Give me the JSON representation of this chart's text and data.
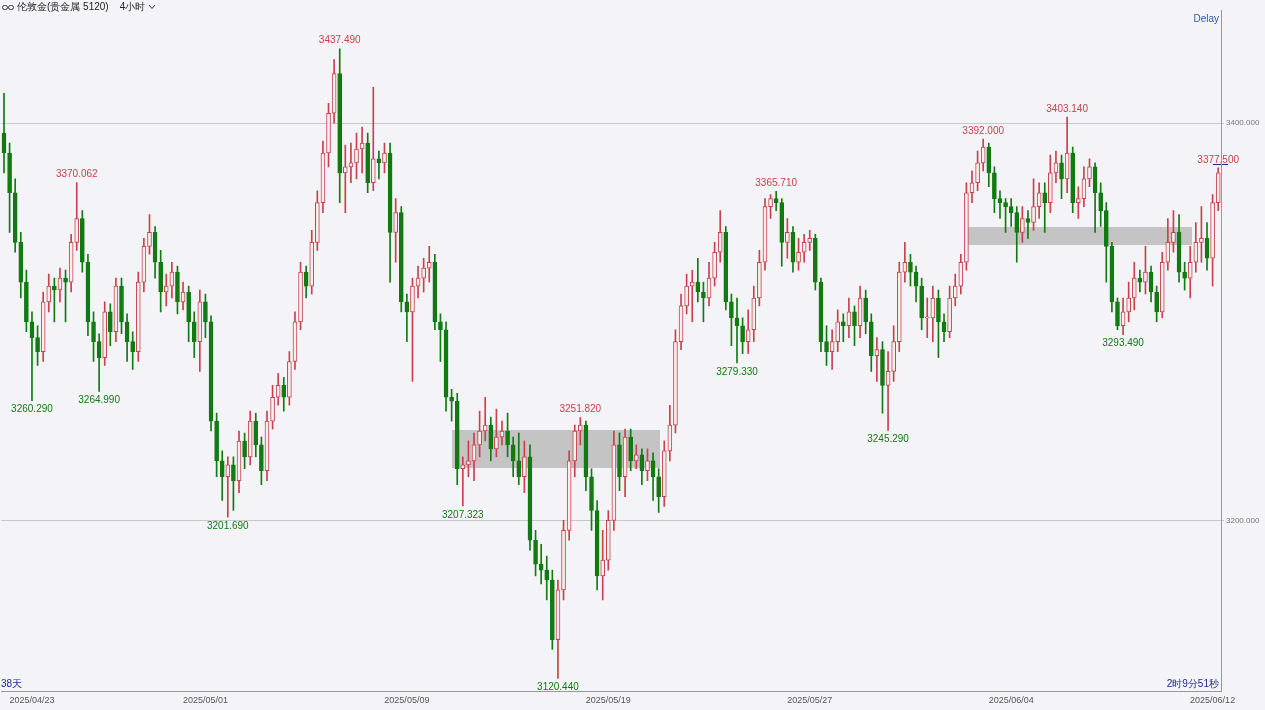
{
  "chart_data": {
    "type": "candlestick",
    "title": "伦敦金(贵金属 5120)",
    "subtitle": "4小时",
    "categories": [
      null,
      null,
      null,
      null,
      null,
      "2025/04/23",
      null,
      null,
      null,
      null,
      null,
      null,
      null,
      null,
      null,
      null,
      null,
      null,
      null,
      null,
      null,
      null,
      null,
      null,
      null,
      null,
      null,
      null,
      null,
      null,
      null,
      null,
      null,
      null,
      null,
      null,
      "2025/05/01",
      null,
      null,
      null,
      null,
      null,
      null,
      null,
      null,
      null,
      null,
      null,
      null,
      null,
      null,
      null,
      null,
      null,
      null,
      null,
      null,
      null,
      null,
      null,
      null,
      null,
      null,
      null,
      null,
      null,
      null,
      null,
      null,
      null,
      null,
      null,
      "2025/05/09",
      null,
      null,
      null,
      null,
      null,
      null,
      null,
      null,
      null,
      null,
      null,
      null,
      null,
      null,
      null,
      null,
      null,
      null,
      null,
      null,
      null,
      null,
      null,
      null,
      null,
      null,
      null,
      null,
      null,
      null,
      null,
      null,
      null,
      null,
      null,
      "2025/05/19",
      null,
      null,
      null,
      null,
      null,
      null,
      null,
      null,
      null,
      null,
      null,
      null,
      null,
      null,
      null,
      null,
      null,
      null,
      null,
      null,
      null,
      null,
      null,
      null,
      null,
      null,
      null,
      null,
      null,
      null,
      null,
      null,
      null,
      null,
      null,
      "2025/05/27",
      null,
      null,
      null,
      null,
      null,
      null,
      null,
      null,
      null,
      null,
      null,
      null,
      null,
      null,
      null,
      null,
      null,
      null,
      null,
      null,
      null,
      null,
      null,
      null,
      null,
      null,
      null,
      null,
      null,
      null,
      null,
      null,
      null,
      null,
      null,
      "2025/06/04",
      null,
      null,
      null,
      null,
      null,
      null,
      null,
      null,
      null,
      null,
      null,
      null,
      null,
      null,
      null,
      null,
      null,
      null,
      null,
      null,
      null,
      null,
      null,
      null,
      null,
      null,
      null,
      null,
      null,
      null,
      null,
      null,
      null,
      null,
      null,
      "2025/06/12",
      null
    ],
    "ohlc": [
      [
        3395,
        3415,
        3375,
        3385
      ],
      [
        3385,
        3390,
        3345,
        3365
      ],
      [
        3365,
        3372,
        3335,
        3340
      ],
      [
        3340,
        3345,
        3312,
        3320
      ],
      [
        3320,
        3326,
        3295,
        3300
      ],
      [
        3300,
        3305,
        3260.29,
        3292
      ],
      [
        3292,
        3298,
        3278,
        3285
      ],
      [
        3285,
        3315,
        3280,
        3310
      ],
      [
        3310,
        3324,
        3305,
        3318
      ],
      [
        3318,
        3322,
        3300,
        3316
      ],
      [
        3316,
        3327,
        3310,
        3322
      ],
      [
        3322,
        3326,
        3300,
        3320
      ],
      [
        3320,
        3344,
        3315,
        3340
      ],
      [
        3340,
        3370.062,
        3336,
        3352
      ],
      [
        3352,
        3356,
        3325,
        3330
      ],
      [
        3330,
        3334,
        3293,
        3300
      ],
      [
        3300,
        3305,
        3280,
        3290
      ],
      [
        3290,
        3294,
        3264.99,
        3282
      ],
      [
        3282,
        3310,
        3278,
        3305
      ],
      [
        3305,
        3309,
        3288,
        3295
      ],
      [
        3295,
        3322,
        3290,
        3318
      ],
      [
        3318,
        3322,
        3294,
        3300
      ],
      [
        3300,
        3304,
        3280,
        3290
      ],
      [
        3290,
        3295,
        3276,
        3285
      ],
      [
        3285,
        3325,
        3280,
        3320
      ],
      [
        3320,
        3342,
        3315,
        3338
      ],
      [
        3338,
        3354,
        3334,
        3345
      ],
      [
        3345,
        3348,
        3322,
        3330
      ],
      [
        3330,
        3336,
        3305,
        3315
      ],
      [
        3315,
        3324,
        3308,
        3318
      ],
      [
        3318,
        3330,
        3312,
        3325
      ],
      [
        3325,
        3328,
        3304,
        3310
      ],
      [
        3310,
        3320,
        3306,
        3315
      ],
      [
        3315,
        3318,
        3290,
        3300
      ],
      [
        3300,
        3305,
        3282,
        3290
      ],
      [
        3290,
        3316,
        3275,
        3310
      ],
      [
        3310,
        3314,
        3292,
        3300
      ],
      [
        3300,
        3303,
        3245,
        3250
      ],
      [
        3250,
        3254,
        3222,
        3230
      ],
      [
        3230,
        3235,
        3210,
        3222
      ],
      [
        3222,
        3232,
        3201.69,
        3228
      ],
      [
        3228,
        3232,
        3205,
        3220
      ],
      [
        3220,
        3245,
        3214,
        3240
      ],
      [
        3240,
        3244,
        3226,
        3232
      ],
      [
        3232,
        3255,
        3228,
        3250
      ],
      [
        3250,
        3254,
        3232,
        3238
      ],
      [
        3238,
        3242,
        3218,
        3225
      ],
      [
        3225,
        3255,
        3220,
        3250
      ],
      [
        3250,
        3268,
        3246,
        3262
      ],
      [
        3262,
        3274,
        3258,
        3268
      ],
      [
        3268,
        3272,
        3255,
        3262
      ],
      [
        3262,
        3285,
        3258,
        3280
      ],
      [
        3280,
        3305,
        3276,
        3300
      ],
      [
        3300,
        3330,
        3296,
        3325
      ],
      [
        3325,
        3328,
        3312,
        3318
      ],
      [
        3318,
        3346,
        3314,
        3340
      ],
      [
        3340,
        3366,
        3336,
        3360
      ],
      [
        3360,
        3391,
        3355,
        3385
      ],
      [
        3385,
        3410,
        3378,
        3405
      ],
      [
        3405,
        3432,
        3400,
        3425
      ],
      [
        3425,
        3437.49,
        3360,
        3375
      ],
      [
        3375,
        3389,
        3355,
        3378
      ],
      [
        3378,
        3390,
        3370,
        3380
      ],
      [
        3380,
        3395,
        3372,
        3387
      ],
      [
        3387,
        3398,
        3375,
        3390
      ],
      [
        3390,
        3395,
        3365,
        3370
      ],
      [
        3370,
        3418,
        3366,
        3382
      ],
      [
        3382,
        3386,
        3372,
        3380
      ],
      [
        3380,
        3390,
        3375,
        3385
      ],
      [
        3385,
        3390,
        3320,
        3345
      ],
      [
        3345,
        3362,
        3330,
        3355
      ],
      [
        3355,
        3358,
        3305,
        3310
      ],
      [
        3310,
        3314,
        3290,
        3305
      ],
      [
        3305,
        3322,
        3270,
        3318
      ],
      [
        3318,
        3328,
        3312,
        3322
      ],
      [
        3322,
        3332,
        3315,
        3327
      ],
      [
        3327,
        3338,
        3320,
        3330
      ],
      [
        3330,
        3334,
        3296,
        3300
      ],
      [
        3300,
        3304,
        3280,
        3296
      ],
      [
        3296,
        3300,
        3255,
        3262
      ],
      [
        3262,
        3266,
        3250,
        3260
      ],
      [
        3260,
        3264,
        3218,
        3226
      ],
      [
        3226,
        3232,
        3207.323,
        3228
      ],
      [
        3228,
        3240,
        3222,
        3230
      ],
      [
        3230,
        3244,
        3220,
        3238
      ],
      [
        3238,
        3255,
        3232,
        3245
      ],
      [
        3245,
        3262,
        3240,
        3248
      ],
      [
        3248,
        3252,
        3230,
        3236
      ],
      [
        3236,
        3256,
        3232,
        3242
      ],
      [
        3242,
        3250,
        3238,
        3245
      ],
      [
        3245,
        3254,
        3232,
        3238
      ],
      [
        3238,
        3242,
        3222,
        3230
      ],
      [
        3230,
        3244,
        3218,
        3222
      ],
      [
        3222,
        3240,
        3214,
        3232
      ],
      [
        3232,
        3238,
        3185,
        3190
      ],
      [
        3190,
        3195,
        3172,
        3178
      ],
      [
        3178,
        3188,
        3168,
        3175
      ],
      [
        3175,
        3182,
        3160,
        3170
      ],
      [
        3170,
        3175,
        3135,
        3140
      ],
      [
        3140,
        3170,
        3120.44,
        3165
      ],
      [
        3165,
        3200,
        3160,
        3195
      ],
      [
        3195,
        3235,
        3190,
        3230
      ],
      [
        3230,
        3248,
        3222,
        3245
      ],
      [
        3245,
        3251.82,
        3238,
        3248
      ],
      [
        3248,
        3250,
        3215,
        3222
      ],
      [
        3222,
        3226,
        3195,
        3205
      ],
      [
        3205,
        3210,
        3165,
        3172
      ],
      [
        3172,
        3195,
        3160,
        3180
      ],
      [
        3180,
        3205,
        3175,
        3200
      ],
      [
        3200,
        3245,
        3195,
        3238
      ],
      [
        3238,
        3244,
        3215,
        3222
      ],
      [
        3222,
        3246,
        3212,
        3242
      ],
      [
        3242,
        3246,
        3225,
        3230
      ],
      [
        3230,
        3238,
        3226,
        3233
      ],
      [
        3233,
        3236,
        3218,
        3225
      ],
      [
        3225,
        3236,
        3220,
        3230
      ],
      [
        3230,
        3234,
        3210,
        3222
      ],
      [
        3222,
        3226,
        3204,
        3212
      ],
      [
        3212,
        3240,
        3207,
        3235
      ],
      [
        3235,
        3258,
        3230,
        3248
      ],
      [
        3248,
        3296,
        3244,
        3290
      ],
      [
        3290,
        3314,
        3286,
        3308
      ],
      [
        3308,
        3324,
        3304,
        3318
      ],
      [
        3318,
        3326,
        3300,
        3320
      ],
      [
        3320,
        3332,
        3310,
        3315
      ],
      [
        3315,
        3320,
        3300,
        3312
      ],
      [
        3312,
        3330,
        3308,
        3322
      ],
      [
        3322,
        3340,
        3318,
        3335
      ],
      [
        3335,
        3356,
        3330,
        3345
      ],
      [
        3345,
        3348,
        3306,
        3310
      ],
      [
        3310,
        3314,
        3288,
        3302
      ],
      [
        3302,
        3312,
        3279.33,
        3298
      ],
      [
        3298,
        3302,
        3284,
        3290
      ],
      [
        3290,
        3306,
        3284,
        3296
      ],
      [
        3296,
        3318,
        3290,
        3312
      ],
      [
        3312,
        3336,
        3308,
        3330
      ],
      [
        3330,
        3362,
        3326,
        3358
      ],
      [
        3358,
        3364,
        3352,
        3362
      ],
      [
        3362,
        3365.71,
        3356,
        3360
      ],
      [
        3360,
        3362,
        3328,
        3340
      ],
      [
        3340,
        3352,
        3332,
        3345
      ],
      [
        3345,
        3348,
        3325,
        3330
      ],
      [
        3330,
        3342,
        3326,
        3335
      ],
      [
        3335,
        3344,
        3330,
        3340
      ],
      [
        3340,
        3346,
        3336,
        3342
      ],
      [
        3342,
        3344,
        3316,
        3320
      ],
      [
        3320,
        3322,
        3285,
        3290
      ],
      [
        3290,
        3298,
        3278,
        3285
      ],
      [
        3285,
        3296,
        3276,
        3290
      ],
      [
        3290,
        3306,
        3285,
        3300
      ],
      [
        3300,
        3304,
        3290,
        3298
      ],
      [
        3298,
        3312,
        3292,
        3305
      ],
      [
        3305,
        3308,
        3288,
        3298
      ],
      [
        3298,
        3318,
        3292,
        3312
      ],
      [
        3312,
        3316,
        3294,
        3300
      ],
      [
        3300,
        3304,
        3275,
        3283
      ],
      [
        3283,
        3292,
        3270,
        3286
      ],
      [
        3286,
        3290,
        3254,
        3268
      ],
      [
        3268,
        3285,
        3245.29,
        3275
      ],
      [
        3275,
        3298,
        3270,
        3290
      ],
      [
        3290,
        3330,
        3285,
        3325
      ],
      [
        3325,
        3340,
        3320,
        3330
      ],
      [
        3330,
        3334,
        3318,
        3325
      ],
      [
        3325,
        3328,
        3310,
        3318
      ],
      [
        3318,
        3322,
        3296,
        3302
      ],
      [
        3302,
        3312,
        3292,
        3302
      ],
      [
        3302,
        3318,
        3290,
        3312
      ],
      [
        3312,
        3316,
        3282,
        3300
      ],
      [
        3300,
        3304,
        3290,
        3295
      ],
      [
        3295,
        3318,
        3292,
        3312
      ],
      [
        3312,
        3324,
        3308,
        3318
      ],
      [
        3318,
        3334,
        3314,
        3330
      ],
      [
        3330,
        3370,
        3326,
        3365
      ],
      [
        3365,
        3376,
        3360,
        3370
      ],
      [
        3370,
        3386,
        3366,
        3380
      ],
      [
        3380,
        3392,
        3376,
        3388
      ],
      [
        3388,
        3390,
        3368,
        3375
      ],
      [
        3375,
        3378,
        3355,
        3362
      ],
      [
        3362,
        3366,
        3352,
        3360
      ],
      [
        3360,
        3362,
        3345,
        3358
      ],
      [
        3358,
        3362,
        3348,
        3355
      ],
      [
        3355,
        3358,
        3330,
        3345
      ],
      [
        3345,
        3358,
        3340,
        3352
      ],
      [
        3352,
        3356,
        3342,
        3350
      ],
      [
        3350,
        3372,
        3346,
        3358
      ],
      [
        3358,
        3370,
        3352,
        3365
      ],
      [
        3365,
        3370,
        3345,
        3360
      ],
      [
        3360,
        3384,
        3355,
        3375
      ],
      [
        3375,
        3386,
        3370,
        3380
      ],
      [
        3380,
        3384,
        3362,
        3372
      ],
      [
        3372,
        3403.14,
        3365,
        3385
      ],
      [
        3385,
        3388,
        3355,
        3360
      ],
      [
        3360,
        3368,
        3352,
        3362
      ],
      [
        3362,
        3378,
        3358,
        3372
      ],
      [
        3372,
        3382,
        3368,
        3378
      ],
      [
        3378,
        3380,
        3345,
        3365
      ],
      [
        3365,
        3370,
        3348,
        3356
      ],
      [
        3356,
        3360,
        3320,
        3338
      ],
      [
        3338,
        3340,
        3305,
        3310
      ],
      [
        3310,
        3312,
        3296,
        3298
      ],
      [
        3298,
        3312,
        3293.49,
        3305
      ],
      [
        3305,
        3320,
        3300,
        3312
      ],
      [
        3312,
        3330,
        3306,
        3322
      ],
      [
        3322,
        3326,
        3315,
        3320
      ],
      [
        3320,
        3338,
        3314,
        3325
      ],
      [
        3325,
        3328,
        3310,
        3315
      ],
      [
        3315,
        3318,
        3300,
        3305
      ],
      [
        3305,
        3335,
        3302,
        3330
      ],
      [
        3330,
        3352,
        3326,
        3340
      ],
      [
        3340,
        3356,
        3335,
        3345
      ],
      [
        3345,
        3354,
        3320,
        3325
      ],
      [
        3325,
        3330,
        3316,
        3322
      ],
      [
        3322,
        3338,
        3312,
        3330
      ],
      [
        3330,
        3350,
        3325,
        3340
      ],
      [
        3340,
        3358,
        3330,
        3342
      ],
      [
        3342,
        3350,
        3326,
        3332
      ],
      [
        3332,
        3364,
        3318,
        3360
      ],
      [
        3360,
        3377.5,
        3356,
        3375
      ]
    ],
    "colors": [
      "#117a11",
      "#117a11",
      "#117a11",
      "#117a11",
      "#117a11",
      "#117a11",
      "#117a11",
      "#c8414b",
      "#c8414b",
      "#117a11",
      "#c8414b",
      "#117a11",
      "#c8414b",
      "#c8414b",
      "#117a11",
      "#117a11",
      "#117a11",
      "#117a11",
      "#c8414b",
      "#117a11",
      "#c8414b",
      "#117a11",
      "#117a11",
      "#117a11",
      "#c8414b",
      "#c8414b",
      "#c8414b",
      "#117a11",
      "#117a11",
      "#c8414b",
      "#c8414b",
      "#117a11",
      "#c8414b",
      "#117a11",
      "#117a11",
      "#c8414b",
      "#117a11",
      "#117a11",
      "#117a11",
      "#117a11",
      "#c8414b",
      "#117a11",
      "#c8414b",
      "#117a11",
      "#c8414b",
      "#117a11",
      "#117a11",
      "#c8414b",
      "#c8414b",
      "#c8414b",
      "#117a11",
      "#c8414b",
      "#c8414b",
      "#c8414b",
      "#117a11",
      "#c8414b",
      "#c8414b",
      "#c8414b",
      "#c8414b",
      "#c8414b",
      "#117a11",
      "#c8414b",
      "#c8414b",
      "#c8414b",
      "#c8414b",
      "#117a11",
      "#c8414b",
      "#117a11",
      "#c8414b",
      "#117a11",
      "#c8414b",
      "#117a11",
      "#117a11",
      "#c8414b",
      "#c8414b",
      "#c8414b",
      "#c8414b",
      "#117a11",
      "#117a11",
      "#117a11",
      "#117a11",
      "#117a11",
      "#c8414b",
      "#c8414b",
      "#c8414b",
      "#c8414b",
      "#c8414b",
      "#117a11",
      "#c8414b",
      "#c8414b",
      "#117a11",
      "#117a11",
      "#117a11",
      "#c8414b",
      "#117a11",
      "#117a11",
      "#117a11",
      "#117a11",
      "#117a11",
      "#c8414b",
      "#c8414b",
      "#c8414b",
      "#c8414b",
      "#c8414b",
      "#117a11",
      "#117a11",
      "#117a11",
      "#c8414b",
      "#c8414b",
      "#c8414b",
      "#117a11",
      "#c8414b",
      "#117a11",
      "#c8414b",
      "#117a11",
      "#c8414b",
      "#117a11",
      "#117a11",
      "#c8414b",
      "#c8414b",
      "#c8414b",
      "#c8414b",
      "#c8414b",
      "#c8414b",
      "#117a11",
      "#117a11",
      "#c8414b",
      "#c8414b",
      "#c8414b",
      "#117a11",
      "#117a11",
      "#117a11",
      "#117a11",
      "#c8414b",
      "#c8414b",
      "#c8414b",
      "#c8414b",
      "#c8414b",
      "#117a11",
      "#117a11",
      "#c8414b",
      "#117a11",
      "#c8414b",
      "#c8414b",
      "#c8414b",
      "#117a11",
      "#117a11",
      "#117a11",
      "#c8414b",
      "#c8414b",
      "#117a11",
      "#c8414b",
      "#117a11",
      "#c8414b",
      "#117a11",
      "#117a11",
      "#c8414b",
      "#117a11",
      "#c8414b",
      "#c8414b",
      "#c8414b",
      "#c8414b",
      "#117a11",
      "#117a11",
      "#117a11",
      "#c8414b",
      "#c8414b",
      "#117a11",
      "#117a11",
      "#c8414b",
      "#c8414b",
      "#c8414b",
      "#c8414b",
      "#c8414b",
      "#c8414b",
      "#c8414b",
      "#117a11",
      "#117a11",
      "#117a11",
      "#117a11",
      "#117a11",
      "#117a11",
      "#c8414b",
      "#117a11",
      "#c8414b",
      "#c8414b",
      "#117a11",
      "#c8414b",
      "#c8414b",
      "#117a11",
      "#c8414b",
      "#117a11",
      "#c8414b",
      "#c8414b",
      "#c8414b",
      "#117a11",
      "#117a11",
      "#117a11",
      "#117a11",
      "#117a11",
      "#c8414b",
      "#c8414b",
      "#c8414b",
      "#117a11",
      "#c8414b",
      "#117a11",
      "#117a11",
      "#c8414b",
      "#c8414b",
      "#c8414b",
      "#117a11",
      "#117a11",
      "#c8414b",
      "#c8414b",
      "#c8414b",
      "#117a11",
      "#c8414b",
      "#c8414b"
    ],
    "ylim": [
      3114,
      3457
    ],
    "yticks": [
      {
        "value": 3400,
        "label": "3400.000"
      },
      {
        "value": 3200,
        "label": "3200.000"
      }
    ],
    "grid": "y",
    "annotations": [
      {
        "text": "3437.490",
        "y": 3437.49
      },
      {
        "text": "3370.062",
        "y": 3370.062
      },
      {
        "text": "3260.290",
        "y": 3260.29
      },
      {
        "text": "3264.990",
        "y": 3264.99
      },
      {
        "text": "3201.690",
        "y": 3201.69
      },
      {
        "text": "3207.323",
        "y": 3207.323
      },
      {
        "text": "3251.820",
        "y": 3251.82
      },
      {
        "text": "3120.440",
        "y": 3120.44
      },
      {
        "text": "3365.710",
        "y": 3365.71
      },
      {
        "text": "3279.330",
        "y": 3279.33
      },
      {
        "text": "3245.290",
        "y": 3245.29
      },
      {
        "text": "3392.000",
        "y": 3392
      },
      {
        "text": "3403.140",
        "y": 3403.14
      },
      {
        "text": "3293.490",
        "y": 3293.49
      },
      {
        "text": "3377.500",
        "y": 3377.5
      },
      "Delay",
      "38天",
      "2时9分51秒"
    ]
  }
}
